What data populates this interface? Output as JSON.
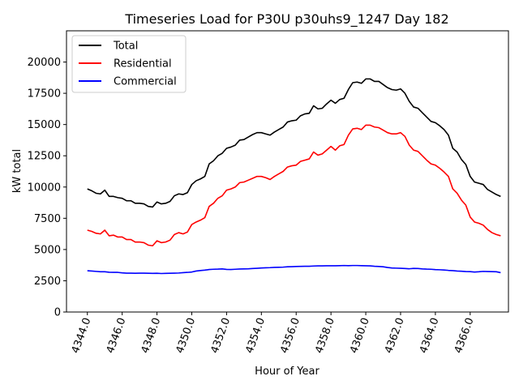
{
  "chart_data": {
    "type": "line",
    "title": "Timeseries Load for P30U p30uhs9_1247  Day 182",
    "xlabel": "Hour of Year",
    "ylabel": "kW total",
    "xlim": [
      4342.8,
      4368.2
    ],
    "ylim": [
      0,
      22500
    ],
    "xticks": [
      4344,
      4346,
      4348,
      4350,
      4352,
      4354,
      4356,
      4358,
      4360,
      4362,
      4364,
      4366
    ],
    "xtick_labels": [
      "4344.0",
      "4346.0",
      "4348.0",
      "4350.0",
      "4352.0",
      "4354.0",
      "4356.0",
      "4358.0",
      "4360.0",
      "4362.0",
      "4364.0",
      "4366.0"
    ],
    "yticks": [
      0,
      2500,
      5000,
      7500,
      10000,
      12500,
      15000,
      17500,
      20000
    ],
    "ytick_labels": [
      "0",
      "2500",
      "5000",
      "7500",
      "10000",
      "12500",
      "15000",
      "17500",
      "20000"
    ],
    "legend_position": "top-left",
    "x": [
      4344.0,
      4344.25,
      4344.5,
      4344.75,
      4345.0,
      4345.25,
      4345.5,
      4345.75,
      4346.0,
      4346.25,
      4346.5,
      4346.75,
      4347.0,
      4347.25,
      4347.5,
      4347.75,
      4348.0,
      4348.25,
      4348.5,
      4348.75,
      4349.0,
      4349.25,
      4349.5,
      4349.75,
      4350.0,
      4350.25,
      4350.5,
      4350.75,
      4351.0,
      4351.25,
      4351.5,
      4351.75,
      4352.0,
      4352.25,
      4352.5,
      4352.75,
      4353.0,
      4353.25,
      4353.5,
      4353.75,
      4354.0,
      4354.25,
      4354.5,
      4354.75,
      4355.0,
      4355.25,
      4355.5,
      4355.75,
      4356.0,
      4356.25,
      4356.5,
      4356.75,
      4357.0,
      4357.25,
      4357.5,
      4357.75,
      4358.0,
      4358.25,
      4358.5,
      4358.75,
      4359.0,
      4359.25,
      4359.5,
      4359.75,
      4360.0,
      4360.25,
      4360.5,
      4360.75,
      4361.0,
      4361.25,
      4361.5,
      4361.75,
      4362.0,
      4362.25,
      4362.5,
      4362.75,
      4363.0,
      4363.25,
      4363.5,
      4363.75,
      4364.0,
      4364.25,
      4364.5,
      4364.75,
      4365.0,
      4365.25,
      4365.5,
      4365.75,
      4366.0,
      4366.25,
      4366.5,
      4366.75,
      4367.0,
      4367.25,
      4367.5,
      4367.75
    ],
    "series": [
      {
        "name": "Total",
        "color": "#000000",
        "values": [
          9850,
          9700,
          9500,
          9450,
          9750,
          9250,
          9250,
          9150,
          9100,
          8900,
          8900,
          8700,
          8700,
          8650,
          8450,
          8400,
          8800,
          8650,
          8700,
          8850,
          9300,
          9450,
          9400,
          9550,
          10200,
          10500,
          10650,
          10850,
          11850,
          12100,
          12500,
          12700,
          13100,
          13200,
          13350,
          13750,
          13800,
          14000,
          14200,
          14350,
          14350,
          14250,
          14150,
          14400,
          14600,
          14800,
          15200,
          15300,
          15350,
          15700,
          15850,
          15900,
          16500,
          16250,
          16300,
          16650,
          16950,
          16700,
          17000,
          17100,
          17800,
          18350,
          18400,
          18300,
          18650,
          18650,
          18450,
          18450,
          18200,
          17950,
          17800,
          17750,
          17850,
          17500,
          16850,
          16400,
          16300,
          15950,
          15600,
          15250,
          15150,
          14900,
          14600,
          14150,
          13100,
          12800,
          12200,
          11800,
          10850,
          10400,
          10300,
          10200,
          9800,
          9600,
          9400,
          9250
        ]
      },
      {
        "name": "Residential",
        "color": "#ff0000",
        "values": [
          6550,
          6450,
          6300,
          6250,
          6550,
          6100,
          6150,
          6000,
          6000,
          5800,
          5800,
          5600,
          5600,
          5550,
          5350,
          5300,
          5700,
          5550,
          5600,
          5750,
          6200,
          6350,
          6250,
          6400,
          7000,
          7200,
          7350,
          7550,
          8450,
          8700,
          9100,
          9300,
          9750,
          9850,
          10000,
          10350,
          10400,
          10550,
          10700,
          10850,
          10850,
          10750,
          10600,
          10850,
          11050,
          11250,
          11600,
          11700,
          11750,
          12050,
          12150,
          12250,
          12800,
          12550,
          12650,
          12950,
          13250,
          12950,
          13300,
          13400,
          14150,
          14650,
          14700,
          14600,
          14950,
          14950,
          14800,
          14750,
          14550,
          14350,
          14250,
          14250,
          14350,
          14050,
          13350,
          12950,
          12850,
          12500,
          12150,
          11850,
          11750,
          11500,
          11200,
          10850,
          9850,
          9500,
          8950,
          8550,
          7600,
          7200,
          7100,
          6950,
          6600,
          6350,
          6200,
          6100
        ]
      },
      {
        "name": "Commercial",
        "color": "#0000ff",
        "values": [
          3300,
          3280,
          3250,
          3220,
          3220,
          3180,
          3170,
          3170,
          3130,
          3110,
          3110,
          3100,
          3110,
          3110,
          3100,
          3090,
          3100,
          3080,
          3090,
          3100,
          3110,
          3120,
          3150,
          3170,
          3200,
          3280,
          3320,
          3350,
          3400,
          3420,
          3430,
          3450,
          3410,
          3400,
          3420,
          3440,
          3450,
          3460,
          3480,
          3500,
          3520,
          3540,
          3550,
          3570,
          3580,
          3590,
          3620,
          3630,
          3640,
          3650,
          3660,
          3660,
          3680,
          3690,
          3690,
          3700,
          3700,
          3700,
          3710,
          3720,
          3710,
          3720,
          3720,
          3710,
          3700,
          3690,
          3660,
          3640,
          3620,
          3560,
          3520,
          3510,
          3500,
          3480,
          3460,
          3490,
          3480,
          3450,
          3430,
          3420,
          3390,
          3380,
          3360,
          3330,
          3310,
          3280,
          3260,
          3240,
          3230,
          3200,
          3220,
          3250,
          3240,
          3230,
          3220,
          3150
        ]
      }
    ]
  }
}
